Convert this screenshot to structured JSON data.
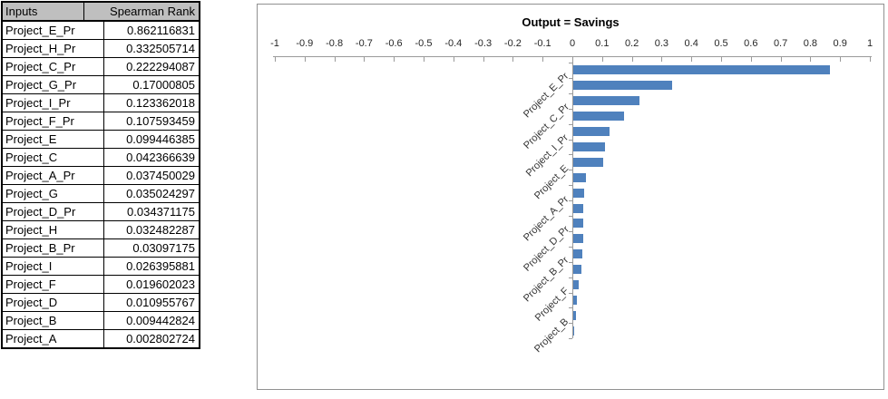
{
  "table": {
    "header": {
      "inputs": "Inputs",
      "spearman": "Spearman Rank"
    },
    "rows": [
      {
        "input": "Project_E_Pr",
        "value": "0.862116831"
      },
      {
        "input": "Project_H_Pr",
        "value": "0.332505714"
      },
      {
        "input": "Project_C_Pr",
        "value": "0.222294087"
      },
      {
        "input": "Project_G_Pr",
        "value": "0.17000805"
      },
      {
        "input": "Project_I_Pr",
        "value": "0.123362018"
      },
      {
        "input": "Project_F_Pr",
        "value": "0.107593459"
      },
      {
        "input": "Project_E",
        "value": "0.099446385"
      },
      {
        "input": "Project_C",
        "value": "0.042366639"
      },
      {
        "input": "Project_A_Pr",
        "value": "0.037450029"
      },
      {
        "input": "Project_G",
        "value": "0.035024297"
      },
      {
        "input": "Project_D_Pr",
        "value": "0.034371175"
      },
      {
        "input": "Project_H",
        "value": "0.032482287"
      },
      {
        "input": "Project_B_Pr",
        "value": "0.03097175"
      },
      {
        "input": "Project_I",
        "value": "0.026395881"
      },
      {
        "input": "Project_F",
        "value": "0.019602023"
      },
      {
        "input": "Project_D",
        "value": "0.010955767"
      },
      {
        "input": "Project_B",
        "value": "0.009442824"
      },
      {
        "input": "Project_A",
        "value": "0.002802724"
      }
    ]
  },
  "chart_data": {
    "type": "bar",
    "orientation": "horizontal",
    "title": "Output = Savings",
    "categories": [
      "Project_E_Pr",
      "Project_H_Pr",
      "Project_C_Pr",
      "Project_G_Pr",
      "Project_I_Pr",
      "Project_F_Pr",
      "Project_E",
      "Project_C",
      "Project_A_Pr",
      "Project_G",
      "Project_D_Pr",
      "Project_H",
      "Project_B_Pr",
      "Project_I",
      "Project_F",
      "Project_D",
      "Project_B",
      "Project_A"
    ],
    "values": [
      0.862116831,
      0.332505714,
      0.222294087,
      0.17000805,
      0.123362018,
      0.107593459,
      0.099446385,
      0.042366639,
      0.037450029,
      0.035024297,
      0.034371175,
      0.032482287,
      0.03097175,
      0.026395881,
      0.019602023,
      0.010955767,
      0.009442824,
      0.002802724
    ],
    "visible_category_labels": [
      "Project_E_Pr",
      "Project_C_Pr",
      "Project_I_Pr",
      "Project_E",
      "Project_A_Pr",
      "Project_D_Pr",
      "Project_B_Pr",
      "Project_F",
      "Project_B"
    ],
    "xlabel": "",
    "ylabel": "",
    "xlim": [
      -1,
      1
    ],
    "x_tick_labels": [
      "-1",
      "-0.9",
      "-0.8",
      "-0.7",
      "-0.6",
      "-0.5",
      "-0.4",
      "-0.3",
      "-0.2",
      "-0.1",
      "0",
      "0.1",
      "0.2",
      "0.3",
      "0.4",
      "0.5",
      "0.6",
      "0.7",
      "0.8",
      "0.9",
      "1"
    ],
    "bar_color": "#4F81BD",
    "axis_color": "#9A9A9A",
    "legend": "none",
    "grid": "off"
  }
}
